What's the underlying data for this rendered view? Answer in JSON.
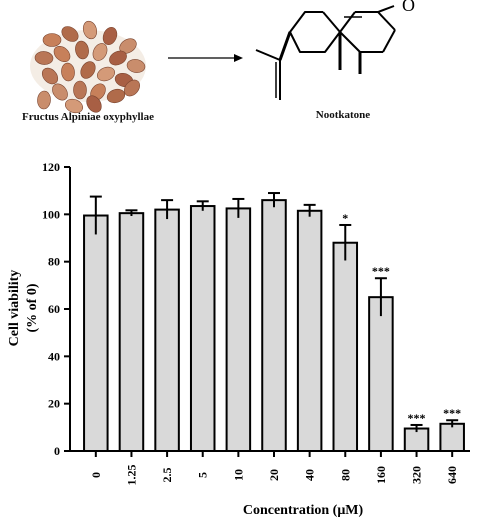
{
  "top_panel": {
    "left_caption": "Fructus Alpiniae oxyphyllae",
    "right_caption": "Nootkatone",
    "left_image": "alpinia-fruits-photo",
    "right_image": "nootkatone-structure",
    "arrow": "right-arrow-icon"
  },
  "chart_data": {
    "type": "bar",
    "categories": [
      "0",
      "1.25",
      "2.5",
      "5",
      "10",
      "20",
      "40",
      "80",
      "160",
      "320",
      "640"
    ],
    "series": [
      {
        "values": [
          99.5,
          100.5,
          102,
          103.5,
          102.5,
          106,
          101.5,
          88,
          65,
          9.5,
          11.5
        ],
        "errors": [
          8,
          1.2,
          4,
          2,
          4,
          3,
          2.5,
          7.5,
          8,
          1.5,
          1.5
        ],
        "annotations": [
          "",
          "",
          "",
          "",
          "",
          "",
          "",
          "*",
          "***",
          "***",
          "***"
        ]
      }
    ],
    "xlabel": "Concentration (μM)",
    "ylabel_lines": [
      "Cell viability",
      "(% of 0)"
    ],
    "ylim": [
      0,
      120
    ],
    "yticks": [
      "0",
      "20",
      "40",
      "60",
      "80",
      "100",
      "120"
    ],
    "grid": false,
    "bar_color": "#d9d9d9",
    "edge_color": "#000000"
  }
}
